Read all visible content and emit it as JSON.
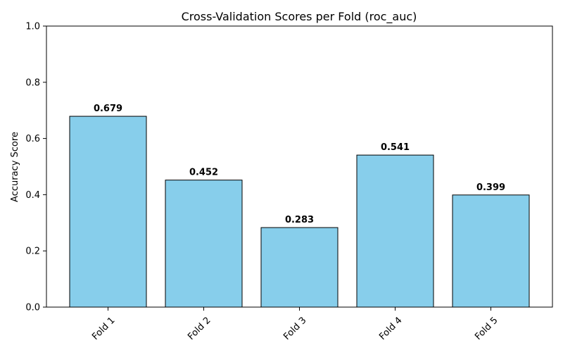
{
  "chart_data": {
    "type": "bar",
    "title": "Cross-Validation Scores per Fold (roc_auc)",
    "xlabel": "",
    "ylabel": "Accuracy Score",
    "categories": [
      "Fold 1",
      "Fold 2",
      "Fold 3",
      "Fold 4",
      "Fold 5"
    ],
    "values": [
      0.679,
      0.452,
      0.283,
      0.541,
      0.399
    ],
    "data_labels": [
      "0.679",
      "0.452",
      "0.283",
      "0.541",
      "0.399"
    ],
    "ylim": [
      0,
      1.0
    ],
    "yticks": [
      0.0,
      0.2,
      0.4,
      0.6,
      0.8,
      1.0
    ],
    "ytick_labels": [
      "0.0",
      "0.2",
      "0.4",
      "0.6",
      "0.8",
      "1.0"
    ],
    "grid": false,
    "legend": "none",
    "bar_color": "#87CEEB",
    "bar_edge_color": "#000000"
  }
}
